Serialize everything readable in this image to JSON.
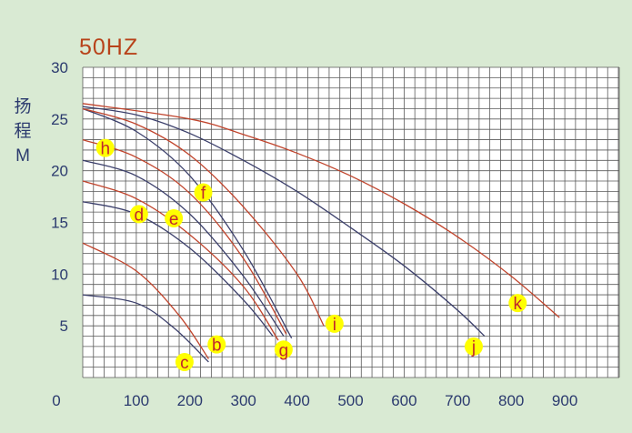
{
  "chart_data": {
    "type": "line",
    "title": "50HZ",
    "ylabel": [
      "扬",
      "程",
      "M"
    ],
    "xlim": [
      0,
      1000
    ],
    "ylim": [
      0,
      30
    ],
    "x_ticks": [
      0,
      100,
      200,
      300,
      400,
      500,
      600,
      700,
      800,
      900
    ],
    "y_ticks": [
      5,
      10,
      15,
      20,
      25,
      30
    ],
    "grid": true,
    "colors": {
      "dark": "#3b3f6b",
      "red": "#c0432b",
      "label_bg": "#ffff00",
      "label_text": "#c0262c",
      "grid": "#5a5a5a"
    },
    "series": [
      {
        "name": "c",
        "color": "dark",
        "points": [
          [
            0,
            8
          ],
          [
            100,
            7.2
          ],
          [
            170,
            4.8
          ],
          [
            235,
            1.5
          ]
        ],
        "label_pos": [
          190,
          1.5
        ]
      },
      {
        "name": "b",
        "color": "red",
        "points": [
          [
            0,
            13
          ],
          [
            100,
            10.3
          ],
          [
            180,
            6
          ],
          [
            235,
            1.8
          ]
        ],
        "label_pos": [
          250,
          3.2
        ]
      },
      {
        "name": "d",
        "color": "dark",
        "points": [
          [
            0,
            17
          ],
          [
            100,
            15.8
          ],
          [
            200,
            12.5
          ],
          [
            300,
            7.5
          ],
          [
            355,
            4
          ]
        ],
        "label_pos": [
          105,
          15.8
        ]
      },
      {
        "name": "e",
        "color": "red",
        "points": [
          [
            0,
            19
          ],
          [
            100,
            17.3
          ],
          [
            200,
            13.8
          ],
          [
            300,
            8.8
          ],
          [
            365,
            3.6
          ]
        ],
        "label_pos": [
          170,
          15.4
        ]
      },
      {
        "name": "g",
        "color": "dark",
        "points": [
          [
            0,
            21
          ],
          [
            100,
            19.5
          ],
          [
            200,
            15.8
          ],
          [
            300,
            9.8
          ],
          [
            375,
            4
          ]
        ],
        "label_pos": [
          375,
          2.7
        ]
      },
      {
        "name": "h",
        "color": "red",
        "points": [
          [
            0,
            23
          ],
          [
            100,
            21.3
          ],
          [
            200,
            17.8
          ],
          [
            300,
            11.5
          ],
          [
            380,
            4.2
          ]
        ],
        "label_pos": [
          42,
          22.2
        ]
      },
      {
        "name": "f",
        "color": "dark",
        "points": [
          [
            0,
            26
          ],
          [
            100,
            23.8
          ],
          [
            200,
            19.5
          ],
          [
            300,
            12.3
          ],
          [
            390,
            3.8
          ]
        ],
        "label_pos": [
          225,
          17.9
        ]
      },
      {
        "name": "i",
        "color": "red",
        "points": [
          [
            0,
            26
          ],
          [
            100,
            24.5
          ],
          [
            200,
            21.5
          ],
          [
            300,
            16.5
          ],
          [
            400,
            10
          ],
          [
            450,
            5
          ]
        ],
        "label_pos": [
          470,
          5.2
        ]
      },
      {
        "name": "j",
        "color": "dark",
        "points": [
          [
            0,
            26.2
          ],
          [
            100,
            25.4
          ],
          [
            200,
            23.6
          ],
          [
            300,
            21
          ],
          [
            400,
            18
          ],
          [
            500,
            14.5
          ],
          [
            600,
            10.8
          ],
          [
            700,
            6.5
          ],
          [
            750,
            4
          ]
        ],
        "label_pos": [
          730,
          3
        ]
      },
      {
        "name": "k",
        "color": "red",
        "points": [
          [
            0,
            26.5
          ],
          [
            200,
            25
          ],
          [
            300,
            23.5
          ],
          [
            400,
            21.7
          ],
          [
            500,
            19.5
          ],
          [
            600,
            16.8
          ],
          [
            700,
            13.6
          ],
          [
            800,
            9.8
          ],
          [
            890,
            5.8
          ]
        ],
        "label_pos": [
          812,
          7.2
        ]
      }
    ]
  }
}
